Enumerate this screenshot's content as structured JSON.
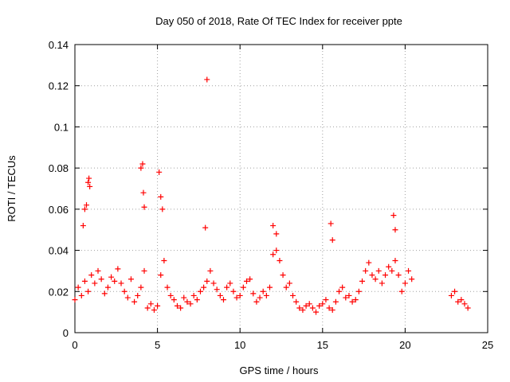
{
  "chart_data": {
    "type": "scatter",
    "title": "Day 050 of 2018, Rate Of TEC Index for receiver ppte",
    "xlabel": "GPS time / hours",
    "ylabel": "ROTI / TECUs",
    "xlim": [
      0,
      25
    ],
    "ylim": [
      0,
      0.14
    ],
    "xticks": [
      0,
      5,
      10,
      15,
      20,
      25
    ],
    "yticks": [
      0,
      0.02,
      0.04,
      0.06,
      0.08,
      0.1,
      0.12,
      0.14
    ],
    "xtick_labels": [
      "0",
      "5",
      "10",
      "15",
      "20",
      "25"
    ],
    "ytick_labels": [
      "0",
      "0.02",
      "0.04",
      "0.06",
      "0.08",
      "0.1",
      "0.12",
      "0.14"
    ],
    "grid": true,
    "marker": "+",
    "color": "#ff0000",
    "series": [
      {
        "x": [
          0.0,
          0.2,
          0.4,
          0.6,
          0.8,
          1.0,
          1.2,
          1.4,
          1.6,
          1.8,
          2.0,
          2.2,
          2.4,
          2.6,
          2.8,
          3.0,
          3.2,
          3.4,
          3.6,
          3.8,
          4.0,
          4.2,
          4.4,
          4.6,
          4.8,
          5.0,
          5.2,
          5.4,
          5.6,
          5.8,
          6.0,
          6.2,
          6.4,
          6.6,
          6.8,
          7.0,
          7.2,
          7.4,
          7.6,
          7.8,
          8.0,
          8.2,
          8.4,
          8.6,
          8.8,
          9.0,
          9.2,
          9.4,
          9.6,
          9.8,
          10.0,
          10.2,
          10.4,
          10.6,
          10.8,
          11.0,
          11.2,
          11.4,
          11.6,
          11.8,
          12.0,
          12.2,
          12.4,
          12.6,
          12.8,
          13.0,
          13.2,
          13.4,
          13.6,
          13.8,
          14.0,
          14.2,
          14.4,
          14.6,
          14.8,
          15.0,
          15.2,
          15.4,
          15.6,
          15.8,
          16.0,
          16.2,
          16.4,
          16.6,
          16.8,
          17.0,
          17.2,
          17.4,
          17.6,
          17.8,
          18.0,
          18.2,
          18.4,
          18.6,
          18.8,
          19.0,
          19.2,
          19.4,
          19.6,
          19.8,
          20.0,
          20.2,
          20.4,
          22.8,
          23.0,
          23.2,
          23.4,
          23.6,
          23.8,
          0.5,
          0.6,
          0.7,
          0.8,
          0.85,
          0.9,
          4.0,
          4.1,
          4.15,
          4.2,
          5.1,
          5.2,
          5.3,
          7.9,
          8.0,
          12.0,
          12.2,
          15.5,
          15.6,
          19.3,
          19.4
        ],
        "y": [
          0.016,
          0.022,
          0.018,
          0.025,
          0.02,
          0.028,
          0.024,
          0.03,
          0.026,
          0.019,
          0.022,
          0.027,
          0.025,
          0.031,
          0.024,
          0.02,
          0.017,
          0.026,
          0.015,
          0.018,
          0.022,
          0.03,
          0.012,
          0.014,
          0.011,
          0.013,
          0.028,
          0.035,
          0.022,
          0.018,
          0.016,
          0.013,
          0.012,
          0.017,
          0.015,
          0.014,
          0.018,
          0.016,
          0.02,
          0.022,
          0.025,
          0.03,
          0.024,
          0.021,
          0.018,
          0.016,
          0.022,
          0.024,
          0.02,
          0.017,
          0.018,
          0.022,
          0.025,
          0.026,
          0.019,
          0.015,
          0.017,
          0.02,
          0.018,
          0.022,
          0.038,
          0.04,
          0.035,
          0.028,
          0.022,
          0.024,
          0.018,
          0.015,
          0.012,
          0.011,
          0.013,
          0.014,
          0.012,
          0.01,
          0.013,
          0.014,
          0.016,
          0.012,
          0.011,
          0.015,
          0.02,
          0.022,
          0.017,
          0.018,
          0.015,
          0.016,
          0.02,
          0.025,
          0.03,
          0.034,
          0.028,
          0.026,
          0.03,
          0.024,
          0.028,
          0.032,
          0.03,
          0.035,
          0.028,
          0.02,
          0.024,
          0.03,
          0.026,
          0.018,
          0.02,
          0.015,
          0.016,
          0.014,
          0.012,
          0.052,
          0.06,
          0.062,
          0.073,
          0.075,
          0.071,
          0.08,
          0.082,
          0.068,
          0.061,
          0.078,
          0.066,
          0.06,
          0.051,
          0.123,
          0.052,
          0.048,
          0.053,
          0.045,
          0.057,
          0.05
        ]
      }
    ]
  }
}
